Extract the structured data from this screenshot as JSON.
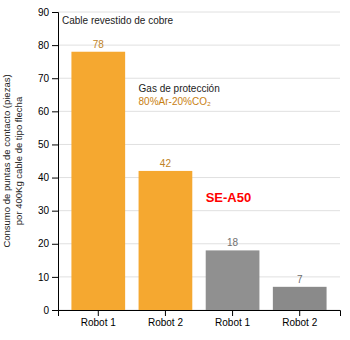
{
  "chart_data": {
    "type": "bar",
    "categories": [
      "Robot 1",
      "Robot 2",
      "Robot 1",
      "Robot 2"
    ],
    "values": [
      78,
      42,
      18,
      7
    ],
    "colors": [
      "#F5A830",
      "#F5A830",
      "#909090",
      "#8A8A8A"
    ],
    "y_label": [
      "Consumo de puntas de contacto (piezas)",
      "por 400Kg cable de tipo flecha"
    ],
    "ylim": [
      0,
      90
    ],
    "yticks": [
      0,
      10,
      20,
      30,
      40,
      50,
      60,
      70,
      80,
      90
    ],
    "grid": true,
    "data_labels": true,
    "annotations": [
      {
        "text": "Cable revestido de cobre"
      },
      {
        "text": "Gas de protección"
      },
      {
        "text": "80%Ar-20%CO₂",
        "color": "#C88010"
      },
      {
        "text": "SE-A50",
        "color": "#FF0000"
      }
    ]
  }
}
